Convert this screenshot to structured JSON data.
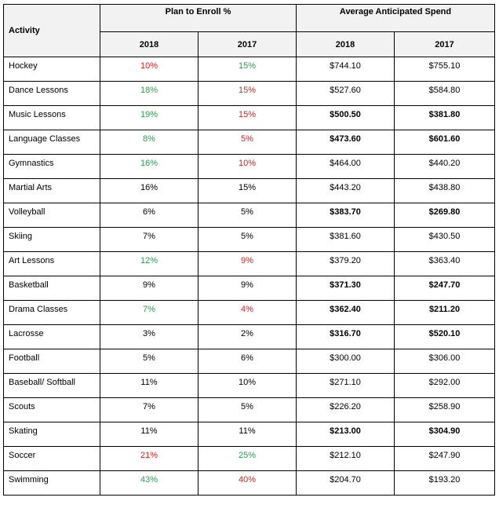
{
  "headers": {
    "activity": "Activity",
    "plan_group": "Plan to Enroll %",
    "spend_group": "Average Anticipated Spend",
    "year_a": "2018",
    "year_b": "2017"
  },
  "colors": {
    "green": "#2e9e4f",
    "red": "#e02020",
    "header_bg": "#f2f2f2"
  },
  "rows": [
    {
      "activity": "Hockey",
      "enroll_2018": "10%",
      "enroll_2017": "15%",
      "spend_2018": "$744.10",
      "spend_2017": "$755.10",
      "c18": "red",
      "c17": "green",
      "bold": false
    },
    {
      "activity": "Dance Lessons",
      "enroll_2018": "18%",
      "enroll_2017": "15%",
      "spend_2018": "$527.60",
      "spend_2017": "$584.80",
      "c18": "green",
      "c17": "red",
      "bold": false
    },
    {
      "activity": "Music Lessons",
      "enroll_2018": "19%",
      "enroll_2017": "15%",
      "spend_2018": "$500.50",
      "spend_2017": "$381.80",
      "c18": "green",
      "c17": "red",
      "bold": true
    },
    {
      "activity": "Language Classes",
      "enroll_2018": "8%",
      "enroll_2017": "5%",
      "spend_2018": "$473.60",
      "spend_2017": "$601.60",
      "c18": "green",
      "c17": "red",
      "bold": true
    },
    {
      "activity": "Gymnastics",
      "enroll_2018": "16%",
      "enroll_2017": "10%",
      "spend_2018": "$464.00",
      "spend_2017": "$440.20",
      "c18": "green",
      "c17": "red",
      "bold": false
    },
    {
      "activity": "Martial Arts",
      "enroll_2018": "16%",
      "enroll_2017": "15%",
      "spend_2018": "$443.20",
      "spend_2017": "$438.80",
      "c18": "",
      "c17": "",
      "bold": false
    },
    {
      "activity": "Volleyball",
      "enroll_2018": "6%",
      "enroll_2017": "5%",
      "spend_2018": "$383.70",
      "spend_2017": "$269.80",
      "c18": "",
      "c17": "",
      "bold": true
    },
    {
      "activity": "Skiing",
      "enroll_2018": "7%",
      "enroll_2017": "5%",
      "spend_2018": "$381.60",
      "spend_2017": "$430.50",
      "c18": "",
      "c17": "",
      "bold": false
    },
    {
      "activity": "Art Lessons",
      "enroll_2018": "12%",
      "enroll_2017": "9%",
      "spend_2018": "$379.20",
      "spend_2017": "$363.40",
      "c18": "green",
      "c17": "red",
      "bold": false
    },
    {
      "activity": "Basketball",
      "enroll_2018": "9%",
      "enroll_2017": "9%",
      "spend_2018": "$371.30",
      "spend_2017": "$247.70",
      "c18": "",
      "c17": "",
      "bold": true
    },
    {
      "activity": "Drama Classes",
      "enroll_2018": "7%",
      "enroll_2017": "4%",
      "spend_2018": "$362.40",
      "spend_2017": "$211.20",
      "c18": "green",
      "c17": "red",
      "bold": true
    },
    {
      "activity": "Lacrosse",
      "enroll_2018": "3%",
      "enroll_2017": "2%",
      "spend_2018": "$316.70",
      "spend_2017": "$520.10",
      "c18": "",
      "c17": "",
      "bold": true
    },
    {
      "activity": "Football",
      "enroll_2018": "5%",
      "enroll_2017": "6%",
      "spend_2018": "$300.00",
      "spend_2017": "$306.00",
      "c18": "",
      "c17": "",
      "bold": false
    },
    {
      "activity": "Baseball/ Softball",
      "enroll_2018": "11%",
      "enroll_2017": "10%",
      "spend_2018": "$271.10",
      "spend_2017": "$292.00",
      "c18": "",
      "c17": "",
      "bold": false
    },
    {
      "activity": "Scouts",
      "enroll_2018": "7%",
      "enroll_2017": "5%",
      "spend_2018": "$226.20",
      "spend_2017": "$258.90",
      "c18": "",
      "c17": "",
      "bold": false
    },
    {
      "activity": "Skating",
      "enroll_2018": "11%",
      "enroll_2017": "11%",
      "spend_2018": "$213.00",
      "spend_2017": "$304.90",
      "c18": "",
      "c17": "",
      "bold": true
    },
    {
      "activity": "Soccer",
      "enroll_2018": "21%",
      "enroll_2017": "25%",
      "spend_2018": "$212.10",
      "spend_2017": "$247.90",
      "c18": "red",
      "c17": "green",
      "bold": false
    },
    {
      "activity": "Swimming",
      "enroll_2018": "43%",
      "enroll_2017": "40%",
      "spend_2018": "$204.70",
      "spend_2017": "$193.20",
      "c18": "green",
      "c17": "red",
      "bold": false
    }
  ]
}
